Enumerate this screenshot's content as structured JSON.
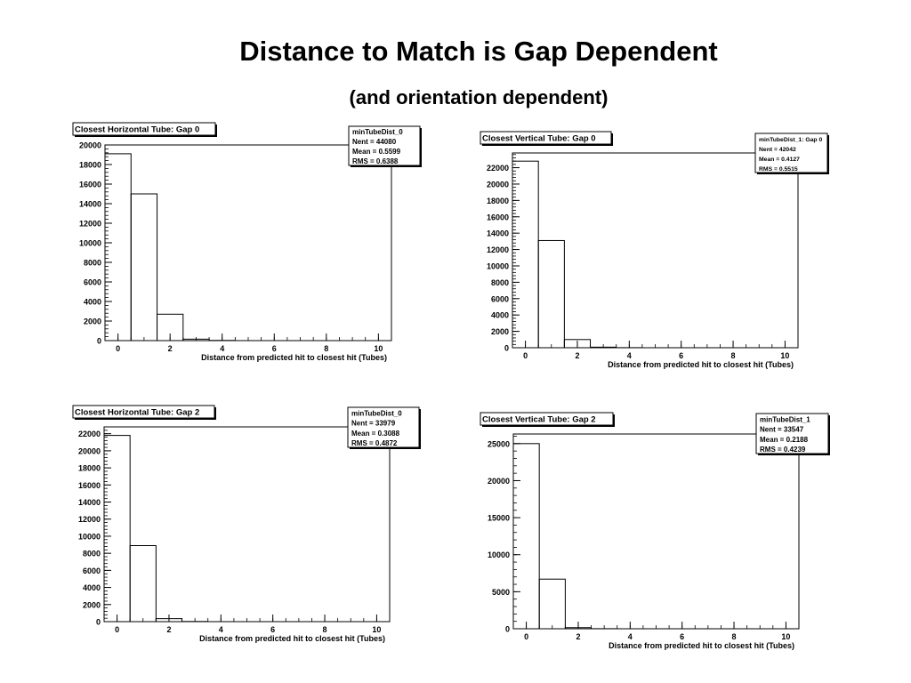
{
  "slide": {
    "title": "Distance to Match is Gap Dependent",
    "subtitle": "(and orientation dependent)"
  },
  "chart_data": [
    {
      "type": "bar",
      "title": "Closest Horizontal Tube: Gap 0",
      "xlabel": "Distance from predicted hit to closest hit (Tubes)",
      "ylabel": "",
      "xlim": [
        -0.5,
        10.5
      ],
      "ylim": [
        0,
        20000
      ],
      "xticks": [
        0,
        2,
        4,
        6,
        8,
        10
      ],
      "yticks": [
        0,
        2000,
        4000,
        6000,
        8000,
        10000,
        12000,
        14000,
        16000,
        18000,
        20000
      ],
      "bins": [
        0,
        1,
        2,
        3,
        4,
        5,
        6,
        7,
        8,
        9,
        10
      ],
      "values": [
        19100,
        15000,
        2700,
        150,
        20,
        0,
        0,
        0,
        0,
        0,
        0
      ],
      "stats": {
        "name": "minTubeDist_0",
        "lines": [
          "Nent = 44080",
          "Mean  = 0.5599",
          "RMS   = 0.6388"
        ]
      }
    },
    {
      "type": "bar",
      "title": "Closest Vertical Tube: Gap 0",
      "xlabel": "Distance from predicted hit to closest hit (Tubes)",
      "ylabel": "",
      "xlim": [
        -0.5,
        10.5
      ],
      "ylim": [
        0,
        23800
      ],
      "xticks": [
        0,
        2,
        4,
        6,
        8,
        10
      ],
      "yticks": [
        0,
        2000,
        4000,
        6000,
        8000,
        10000,
        12000,
        14000,
        16000,
        18000,
        20000,
        22000
      ],
      "bins": [
        0,
        1,
        2,
        3,
        4,
        5,
        6,
        7,
        8,
        9,
        10
      ],
      "values": [
        22800,
        13100,
        1000,
        70,
        10,
        0,
        0,
        0,
        0,
        0,
        0
      ],
      "stats": {
        "name": "minTubeDist_1: Gap 0",
        "lines": [
          "Nent = 42042",
          "Mean  = 0.4127",
          "RMS   = 0.5515"
        ]
      }
    },
    {
      "type": "bar",
      "title": "Closest Horizontal Tube: Gap 2",
      "xlabel": "Distance from predicted hit to closest hit (Tubes)",
      "ylabel": "",
      "xlim": [
        -0.5,
        10.5
      ],
      "ylim": [
        0,
        22800
      ],
      "xticks": [
        0,
        2,
        4,
        6,
        8,
        10
      ],
      "yticks": [
        0,
        2000,
        4000,
        6000,
        8000,
        10000,
        12000,
        14000,
        16000,
        18000,
        20000,
        22000
      ],
      "bins": [
        0,
        1,
        2,
        3,
        4,
        5,
        6,
        7,
        8,
        9,
        10
      ],
      "values": [
        21800,
        8900,
        350,
        20,
        0,
        0,
        0,
        0,
        0,
        0,
        0
      ],
      "stats": {
        "name": "minTubeDist_0",
        "lines": [
          "Nent = 33979",
          "Mean  = 0.3088",
          "RMS   = 0.4872"
        ]
      }
    },
    {
      "type": "bar",
      "title": "Closest Vertical Tube: Gap 2",
      "xlabel": "Distance from predicted hit to closest hit (Tubes)",
      "ylabel": "",
      "xlim": [
        -0.5,
        10.5
      ],
      "ylim": [
        0,
        26300
      ],
      "xticks": [
        0,
        2,
        4,
        6,
        8,
        10
      ],
      "yticks": [
        0,
        5000,
        10000,
        15000,
        20000,
        25000
      ],
      "bins": [
        0,
        1,
        2,
        3,
        4,
        5,
        6,
        7,
        8,
        9,
        10
      ],
      "values": [
        25000,
        6700,
        150,
        10,
        0,
        0,
        0,
        0,
        0,
        0,
        0
      ],
      "stats": {
        "name": "minTubeDist_1",
        "lines": [
          "Nent = 33547",
          "Mean  = 0.2188",
          "RMS   = 0.4239"
        ]
      }
    }
  ]
}
